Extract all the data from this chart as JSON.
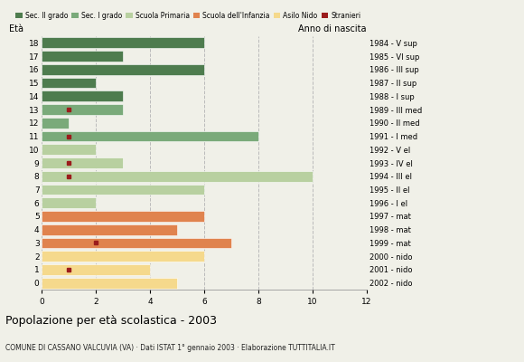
{
  "ages": [
    18,
    17,
    16,
    15,
    14,
    13,
    12,
    11,
    10,
    9,
    8,
    7,
    6,
    5,
    4,
    3,
    2,
    1,
    0
  ],
  "anno_nascita": [
    "1984 - V sup",
    "1985 - VI sup",
    "1986 - III sup",
    "1987 - II sup",
    "1988 - I sup",
    "1989 - III med",
    "1990 - II med",
    "1991 - I med",
    "1992 - V el",
    "1993 - IV el",
    "1994 - III el",
    "1995 - II el",
    "1996 - I el",
    "1997 - mat",
    "1998 - mat",
    "1999 - mat",
    "2000 - nido",
    "2001 - nido",
    "2002 - nido"
  ],
  "bar_values": [
    6,
    3,
    6,
    2,
    3,
    3,
    1,
    8,
    2,
    3,
    10,
    6,
    2,
    6,
    5,
    7,
    6,
    4,
    5
  ],
  "stranieri_ages": [
    13,
    11,
    9,
    8,
    3,
    1
  ],
  "stranieri_x_pos": [
    1,
    1,
    1,
    1,
    2,
    1
  ],
  "categories": {
    "sec2": [
      18,
      17,
      16,
      15,
      14
    ],
    "sec1": [
      13,
      12,
      11
    ],
    "primaria": [
      10,
      9,
      8,
      7,
      6
    ],
    "infanzia": [
      5,
      4,
      3
    ],
    "nido": [
      2,
      1,
      0
    ]
  },
  "colors": {
    "sec2": "#4e7c4e",
    "sec1": "#7aaa7a",
    "primaria": "#b8d0a0",
    "infanzia": "#e0834e",
    "nido": "#f5d98c"
  },
  "stranieri_color": "#9b1c1c",
  "legend_labels": [
    "Sec. II grado",
    "Sec. I grado",
    "Scuola Primaria",
    "Scuola dell'Infanzia",
    "Asilo Nido",
    "Stranieri"
  ],
  "title": "Popolazione per età scolastica - 2003",
  "subtitle": "COMUNE DI CASSANO VALCUVIA (VA) · Dati ISTAT 1° gennaio 2003 · Elaborazione TUTTITALIA.IT",
  "ylabel_left": "Età",
  "ylabel_right": "Anno di nascita",
  "xlim": [
    0,
    12
  ],
  "xticks": [
    0,
    2,
    4,
    6,
    8,
    10,
    12
  ],
  "background_color": "#f0f0e8",
  "grid_color": "#bbbbbb",
  "bar_height": 0.8
}
